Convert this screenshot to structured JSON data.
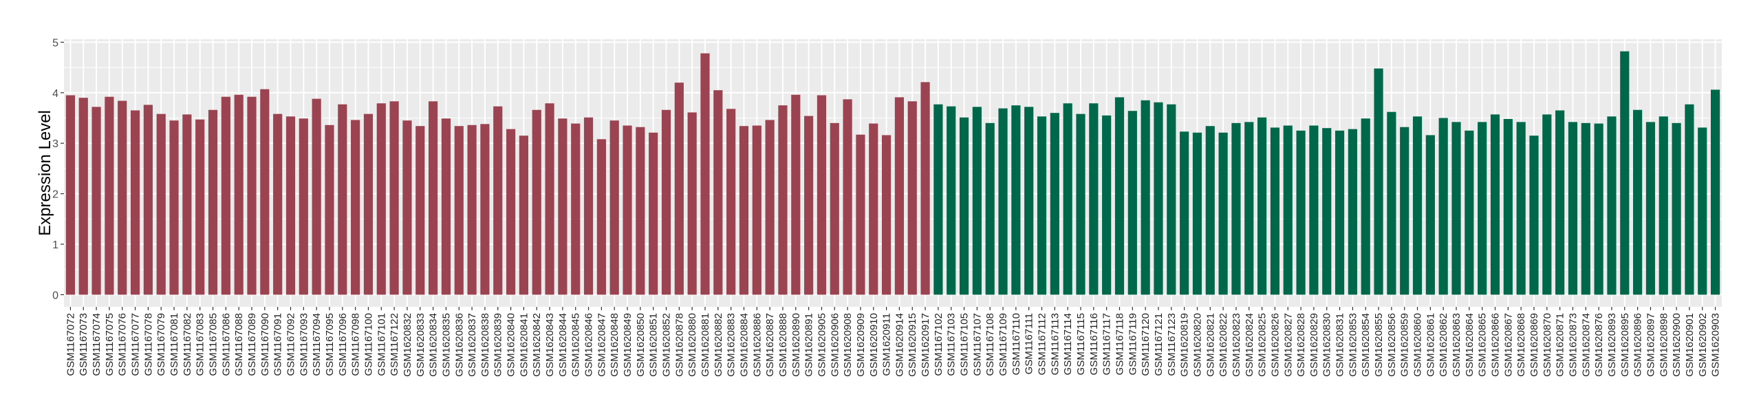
{
  "chart_data": {
    "type": "bar",
    "title": "",
    "xlabel": "",
    "ylabel": "Expression Level",
    "ylim": [
      -0.24,
      5.06
    ],
    "yticks": [
      "0",
      "1",
      "2",
      "3",
      "4",
      "5"
    ],
    "grid": true,
    "legend": "none",
    "categories": [
      "GSM1167072",
      "GSM1167073",
      "GSM1167074",
      "GSM1167075",
      "GSM1167076",
      "GSM1167077",
      "GSM1167078",
      "GSM1167079",
      "GSM1167081",
      "GSM1167082",
      "GSM1167083",
      "GSM1167085",
      "GSM1167086",
      "GSM1167088",
      "GSM1167089",
      "GSM1167090",
      "GSM1167091",
      "GSM1167092",
      "GSM1167093",
      "GSM1167094",
      "GSM1167095",
      "GSM1167096",
      "GSM1167098",
      "GSM1167100",
      "GSM1167101",
      "GSM1167122",
      "GSM1620832",
      "GSM1620833",
      "GSM1620834",
      "GSM1620835",
      "GSM1620836",
      "GSM1620837",
      "GSM1620838",
      "GSM1620839",
      "GSM1620840",
      "GSM1620841",
      "GSM1620842",
      "GSM1620843",
      "GSM1620844",
      "GSM1620845",
      "GSM1620846",
      "GSM1620847",
      "GSM1620848",
      "GSM1620849",
      "GSM1620850",
      "GSM1620851",
      "GSM1620852",
      "GSM1620878",
      "GSM1620880",
      "GSM1620881",
      "GSM1620882",
      "GSM1620883",
      "GSM1620884",
      "GSM1620886",
      "GSM1620887",
      "GSM1620888",
      "GSM1620890",
      "GSM1620891",
      "GSM1620905",
      "GSM1620906",
      "GSM1620908",
      "GSM1620909",
      "GSM1620910",
      "GSM1620911",
      "GSM1620914",
      "GSM1620915",
      "GSM1620917",
      "GSM1167102",
      "GSM1167103",
      "GSM1167105",
      "GSM1167107",
      "GSM1167108",
      "GSM1167109",
      "GSM1167110",
      "GSM1167111",
      "GSM1167112",
      "GSM1167113",
      "GSM1167114",
      "GSM1167115",
      "GSM1167116",
      "GSM1167117",
      "GSM1167118",
      "GSM1167119",
      "GSM1167120",
      "GSM1167121",
      "GSM1167123",
      "GSM1620819",
      "GSM1620820",
      "GSM1620821",
      "GSM1620822",
      "GSM1620823",
      "GSM1620824",
      "GSM1620825",
      "GSM1620826",
      "GSM1620827",
      "GSM1620828",
      "GSM1620829",
      "GSM1620830",
      "GSM1620831",
      "GSM1620853",
      "GSM1620854",
      "GSM1620855",
      "GSM1620856",
      "GSM1620859",
      "GSM1620860",
      "GSM1620861",
      "GSM1620862",
      "GSM1620863",
      "GSM1620864",
      "GSM1620865",
      "GSM1620866",
      "GSM1620867",
      "GSM1620868",
      "GSM1620869",
      "GSM1620870",
      "GSM1620871",
      "GSM1620873",
      "GSM1620874",
      "GSM1620876",
      "GSM1620893",
      "GSM1620895",
      "GSM1620896",
      "GSM1620897",
      "GSM1620898",
      "GSM1620900",
      "GSM1620901",
      "GSM1620902",
      "GSM1620903"
    ],
    "values": [
      3.95,
      3.9,
      3.72,
      3.92,
      3.84,
      3.65,
      3.76,
      3.58,
      3.45,
      3.57,
      3.47,
      3.66,
      3.92,
      3.96,
      3.92,
      4.07,
      3.58,
      3.53,
      3.49,
      3.88,
      3.36,
      3.77,
      3.46,
      3.58,
      3.79,
      3.83,
      3.45,
      3.34,
      3.83,
      3.49,
      3.34,
      3.36,
      3.38,
      3.73,
      3.28,
      3.15,
      3.66,
      3.79,
      3.49,
      3.39,
      3.51,
      3.08,
      3.45,
      3.35,
      3.32,
      3.21,
      3.66,
      4.2,
      3.61,
      4.78,
      4.05,
      3.68,
      3.34,
      3.35,
      3.46,
      3.75,
      3.96,
      3.54,
      3.95,
      3.4,
      3.87,
      3.17,
      3.39,
      3.16,
      3.91,
      3.83,
      4.21,
      3.77,
      3.73,
      3.51,
      3.72,
      3.4,
      3.69,
      3.75,
      3.72,
      3.53,
      3.6,
      3.79,
      3.58,
      3.79,
      3.55,
      3.91,
      3.64,
      3.85,
      3.81,
      3.77,
      3.23,
      3.21,
      3.34,
      3.21,
      3.4,
      3.42,
      3.51,
      3.31,
      3.35,
      3.25,
      3.35,
      3.3,
      3.25,
      3.28,
      3.49,
      4.48,
      3.62,
      3.32,
      3.53,
      3.16,
      3.5,
      3.42,
      3.25,
      3.42,
      3.57,
      3.48,
      3.42,
      3.15,
      3.57,
      3.65,
      3.42,
      3.4,
      3.39,
      3.53,
      4.82,
      3.66,
      3.42,
      3.53,
      3.4,
      3.77,
      3.31,
      4.06
    ],
    "groups": [
      {
        "color": "#9B4350",
        "count": 67
      },
      {
        "color": "#00684A",
        "count": 61
      }
    ]
  },
  "colors": {
    "panel": "#EBEBEB",
    "grid": "#FFFFFF"
  }
}
